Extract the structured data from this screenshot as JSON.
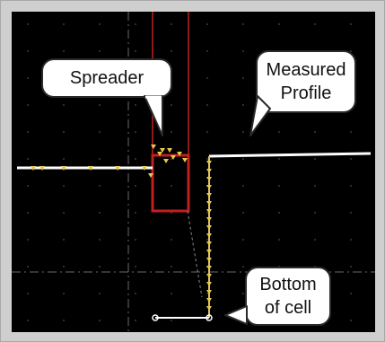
{
  "callouts": {
    "spreader": {
      "label": "Spreader"
    },
    "measured_profile": {
      "line1": "Measured",
      "line2": "Profile"
    },
    "bottom_of_cell": {
      "line1": "Bottom",
      "line2": "of cell"
    }
  },
  "colors": {
    "background": "#000000",
    "frame": "#cfcfcf",
    "profile_line": "#ffffff",
    "spreader_outline": "#c0201e",
    "markers": "#e8c84a",
    "grid_dots": "#3c3c3c",
    "guide_lines": "#707070"
  }
}
